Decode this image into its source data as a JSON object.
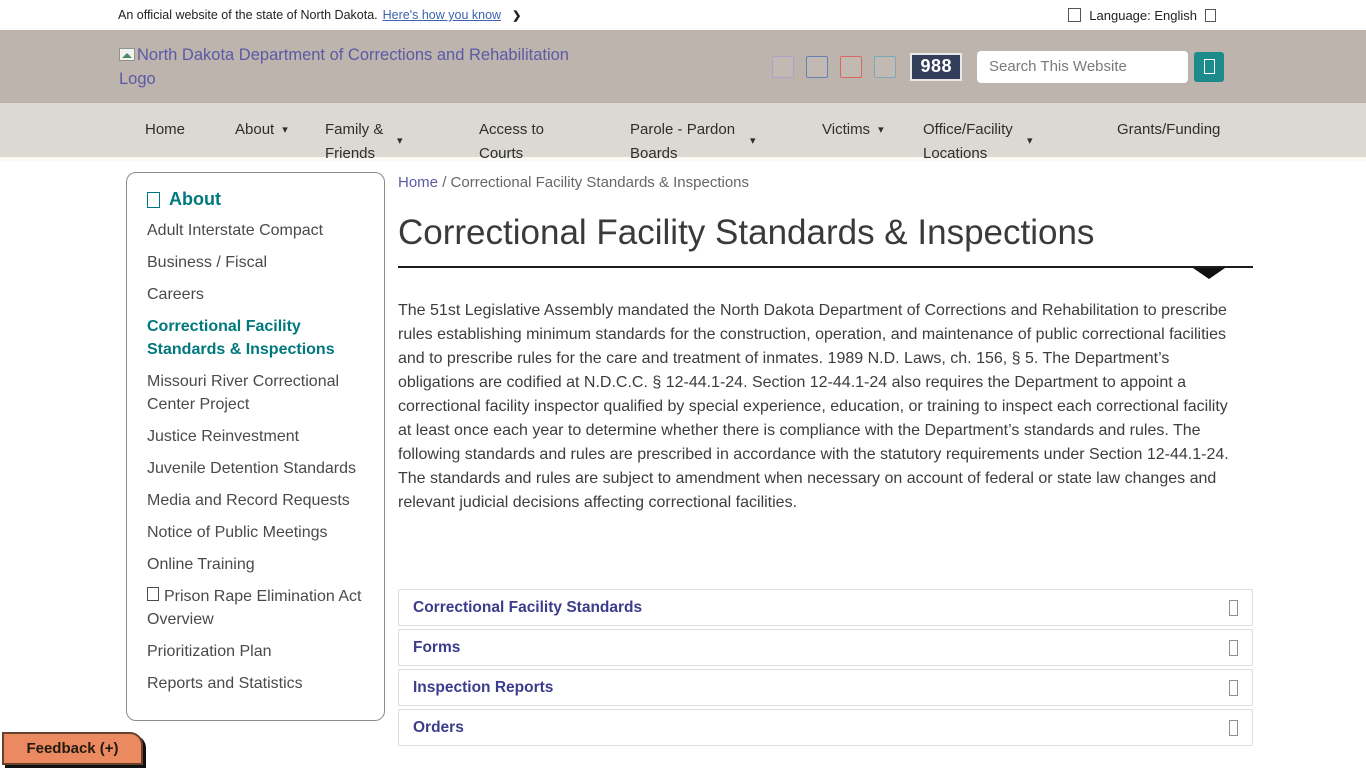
{
  "banner": {
    "text": "An official website of the state of North Dakota.",
    "link_label": "Here's how you know",
    "language_label": "Language: English"
  },
  "icons": {
    "chevron_right": "❯",
    "caret_down": "▾"
  },
  "header": {
    "logo_alt": "North Dakota Department of Corrections and Rehabilitation Logo",
    "crisis_line": "988",
    "search_placeholder": "Search This Website",
    "social_icon_names": [
      "social-media-icon-1",
      "social-media-icon-2",
      "social-media-icon-3",
      "social-media-icon-4"
    ]
  },
  "nav": {
    "items": [
      {
        "label": "Home",
        "caret": false
      },
      {
        "label": "About",
        "caret": true
      },
      {
        "label": "Family & Friends",
        "caret": true
      },
      {
        "label": "Access to Courts",
        "caret": false
      },
      {
        "label": "Parole - Pardon Boards",
        "caret": true
      },
      {
        "label": "Victims",
        "caret": true
      },
      {
        "label": "Office/Facility Locations",
        "caret": true
      },
      {
        "label": "Grants/Funding",
        "caret": false
      }
    ]
  },
  "sidebar": {
    "title": "About",
    "items": [
      {
        "label": "Adult Interstate Compact"
      },
      {
        "label": "Business / Fiscal"
      },
      {
        "label": "Careers"
      },
      {
        "label": "Correctional Facility Standards & Inspections",
        "active": true
      },
      {
        "label": "Missouri River Correctional Center Project"
      },
      {
        "label": "Justice Reinvestment"
      },
      {
        "label": "Juvenile Detention Standards"
      },
      {
        "label": "Media and Record Requests"
      },
      {
        "label": "Notice of Public Meetings"
      },
      {
        "label": "Online Training"
      },
      {
        "label": "Prison Rape Elimination Act Overview",
        "has_icon": true
      },
      {
        "label": "Prioritization Plan"
      },
      {
        "label": "Reports and Statistics"
      }
    ]
  },
  "breadcrumb": {
    "home_label": "Home",
    "separator": "/",
    "current": "Correctional Facility Standards & Inspections"
  },
  "page": {
    "title": "Correctional Facility Standards & Inspections",
    "body": "The 51st Legislative Assembly mandated the North Dakota Department of Corrections and Rehabilitation to prescribe rules establishing minimum standards for the construction, operation, and maintenance of public correctional facilities and to prescribe rules for the care and treatment of inmates. 1989 N.D. Laws, ch. 156, § 5. The Department’s obligations are codified at N.D.C.C. § 12-44.1-24. Section 12-44.1-24 also requires the Department to appoint a correctional facility inspector qualified by special experience, education, or training to inspect each correctional facility at least once each year to determine whether there is compliance with the Department’s standards and rules. The following standards and rules are prescribed in accordance with the statutory requirements under Section 12-44.1-24. The standards and rules are subject to amendment when necessary on account of federal or state law changes and relevant judicial decisions affecting correctional facilities."
  },
  "accordions": [
    {
      "label": "Correctional Facility Standards"
    },
    {
      "label": "Forms"
    },
    {
      "label": "Inspection Reports"
    },
    {
      "label": "Orders"
    }
  ],
  "feedback": {
    "label": "Feedback (+)"
  },
  "colors": {
    "header_bg": "#bdb4ad",
    "nav_bg": "#dcd8d2",
    "teal_accent": "#00787d",
    "link_purple": "#5b5aa6",
    "accordion_purple": "#3c3c8c",
    "badge_bg": "#323e5a",
    "search_button": "#1d8a8c",
    "feedback_bg": "#eb8a61"
  }
}
